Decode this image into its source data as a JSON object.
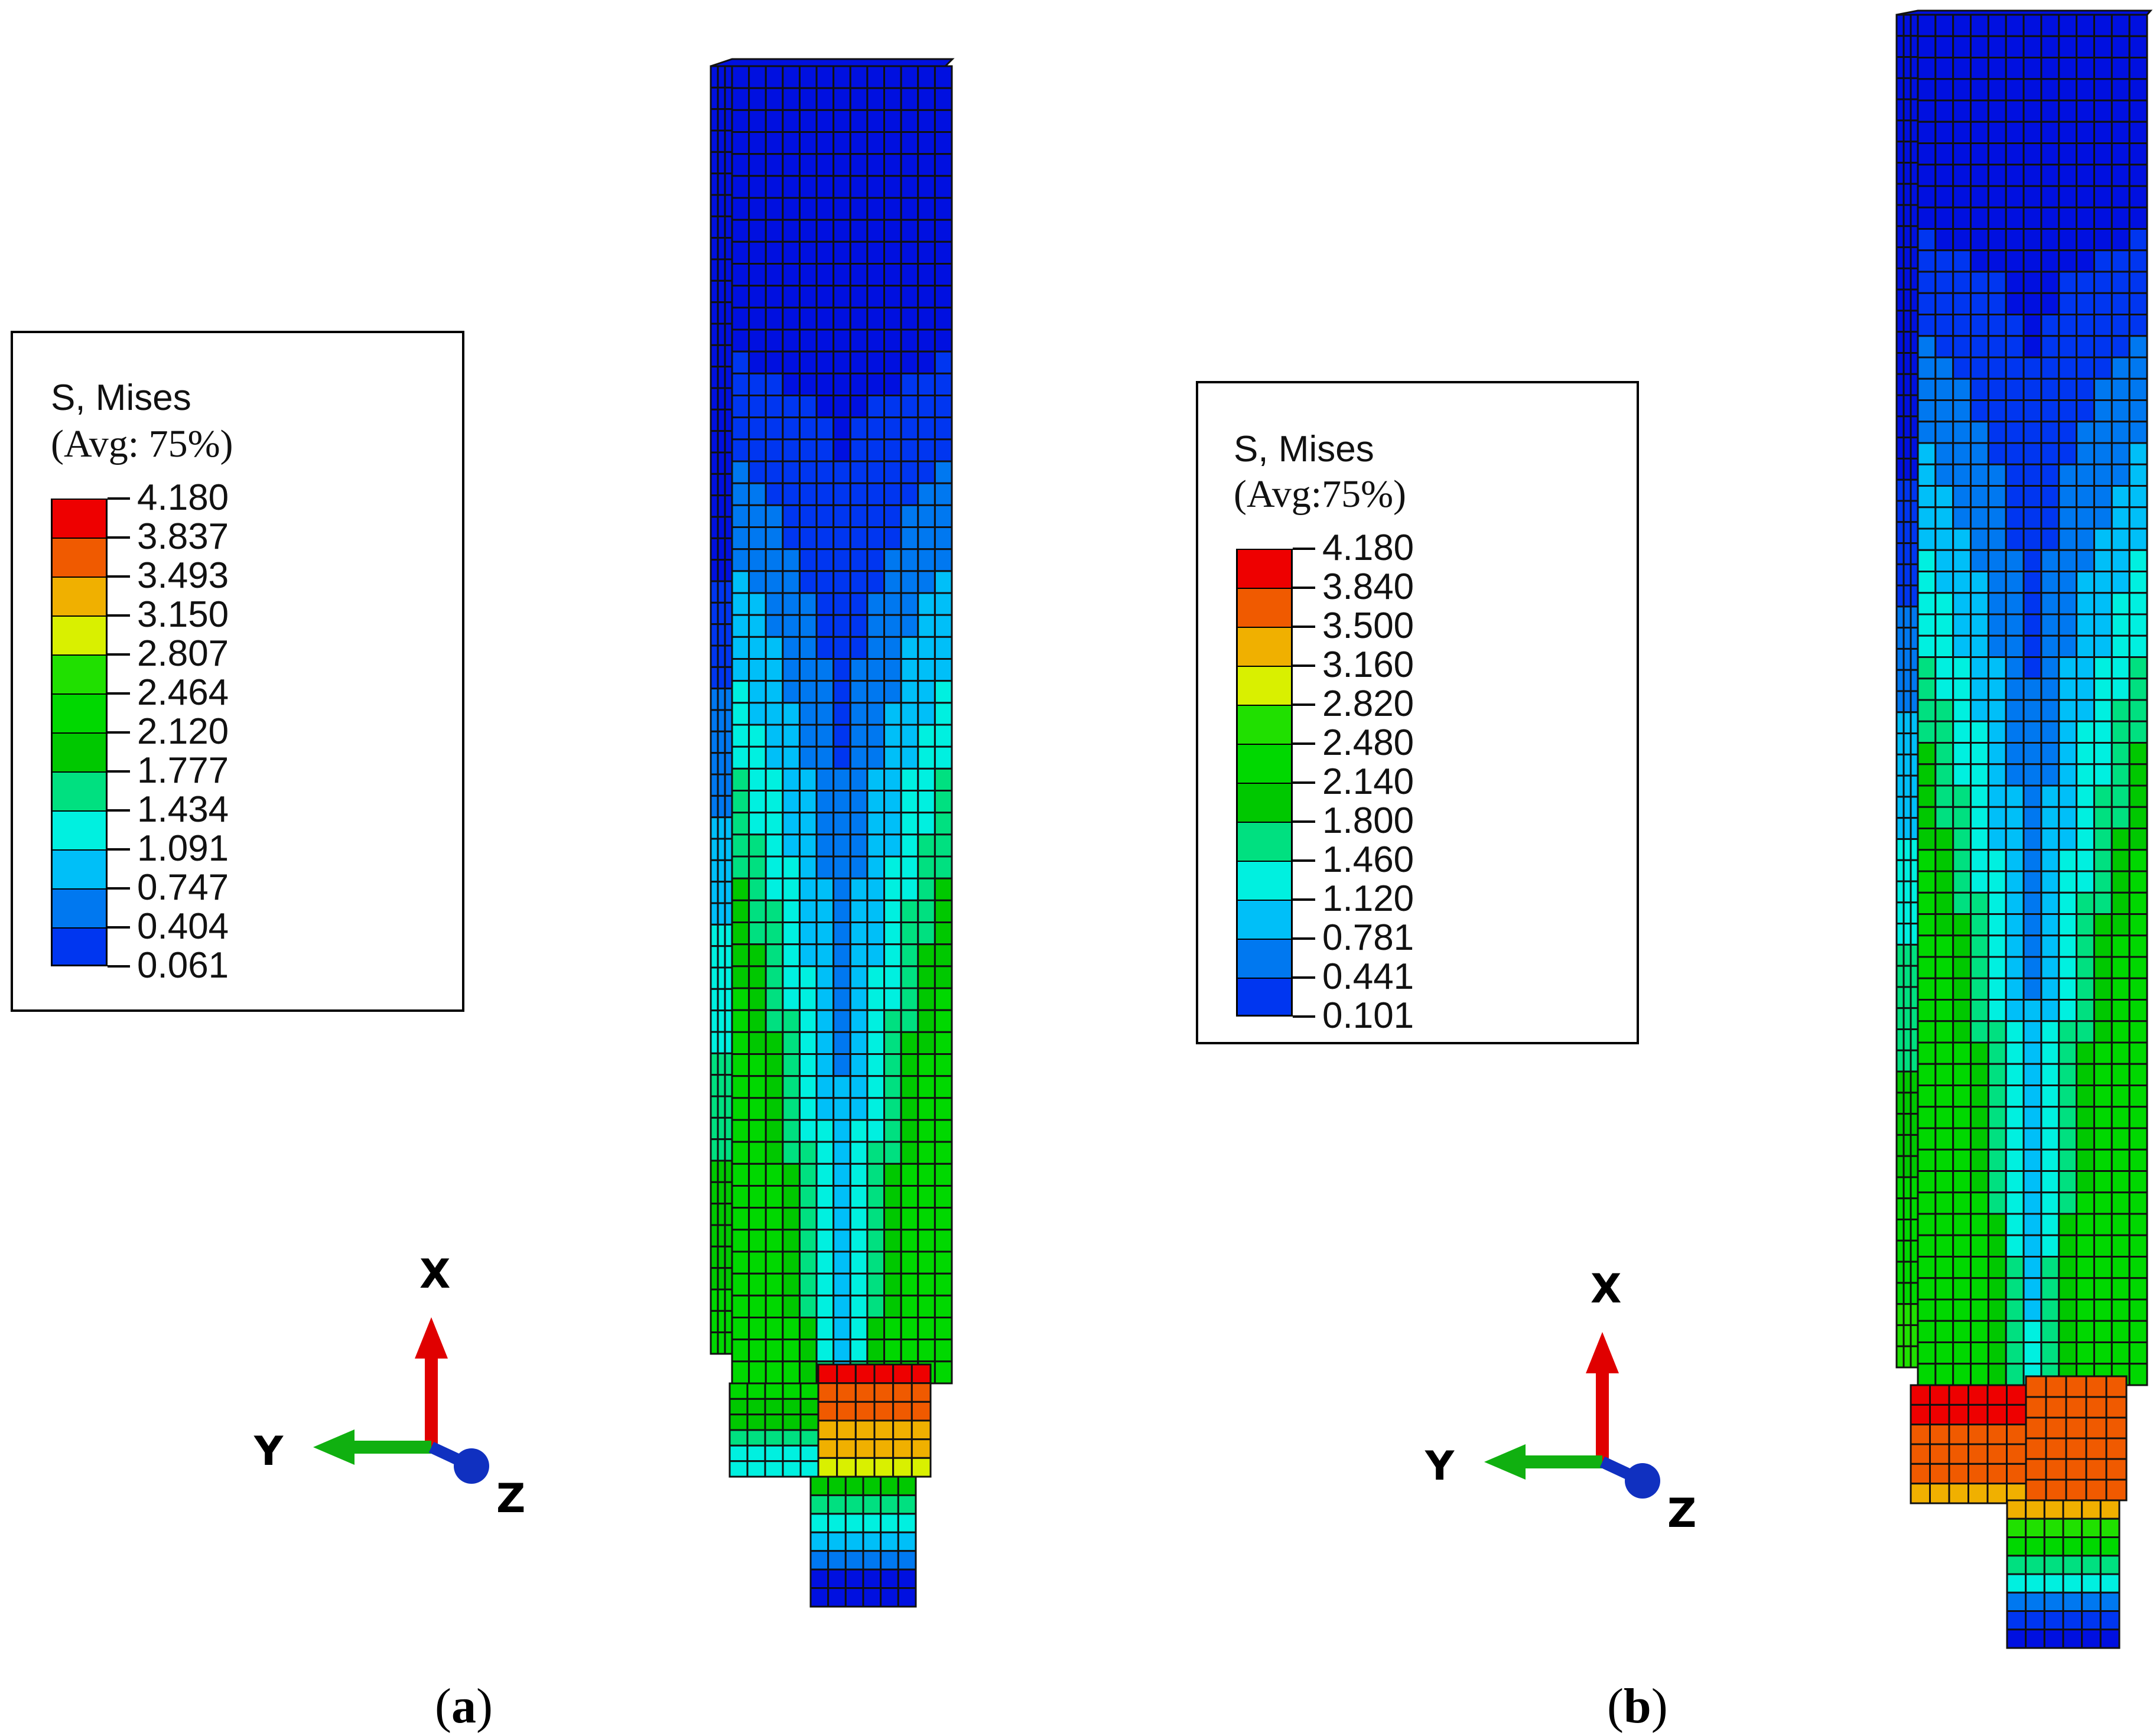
{
  "panels": [
    {
      "label": "a",
      "legend": {
        "title": "S, Mises",
        "subtitle": "(Avg: 75%)",
        "values": [
          "4.180",
          "3.837",
          "3.493",
          "3.150",
          "2.807",
          "2.464",
          "2.120",
          "1.777",
          "1.434",
          "1.091",
          "0.747",
          "0.404",
          "0.061"
        ]
      },
      "axes": {
        "x": "X",
        "y": "Y",
        "z": "Z"
      }
    },
    {
      "label": "b",
      "legend": {
        "title": "S, Mises",
        "subtitle": "(Avg:75%)",
        "values": [
          "4.180",
          "3.840",
          "3.500",
          "3.160",
          "2.820",
          "2.480",
          "2.140",
          "1.800",
          "1.460",
          "1.120",
          "0.781",
          "0.441",
          "0.101"
        ]
      },
      "axes": {
        "x": "X",
        "y": "Y",
        "z": "Z"
      }
    }
  ],
  "colormap": [
    "#ee0000",
    "#f05a00",
    "#f0b000",
    "#d9f000",
    "#20e000",
    "#00d800",
    "#00c800",
    "#00e080",
    "#00f0e0",
    "#00bff8",
    "#0078f0",
    "#0036f0",
    "#0010e0"
  ]
}
